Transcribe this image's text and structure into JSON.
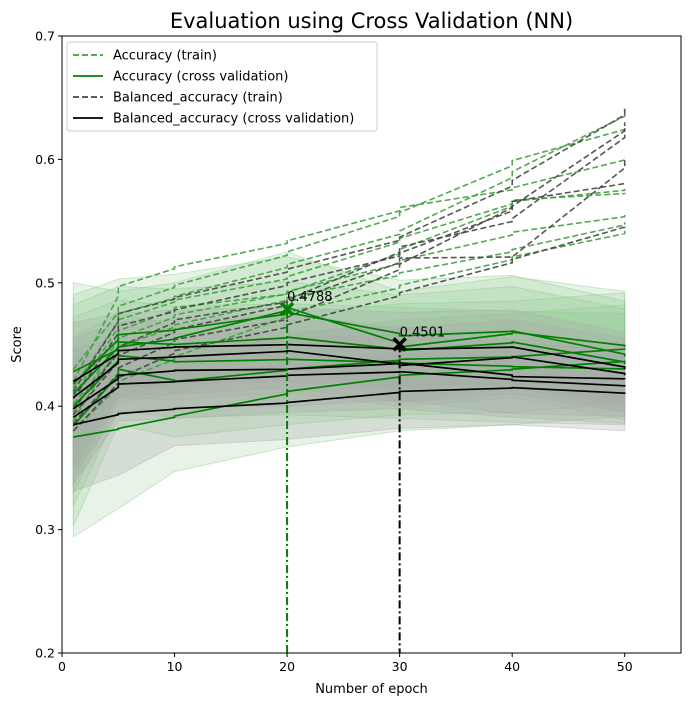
{
  "chart_data": {
    "type": "line",
    "title": "Evaluation using Cross Validation (NN)",
    "xlabel": "Number of epoch",
    "ylabel": "Score",
    "xlim": [
      0,
      55
    ],
    "ylim": [
      0.2,
      0.7
    ],
    "xticks": [
      0,
      10,
      20,
      30,
      40,
      50
    ],
    "yticks": [
      0.2,
      0.3,
      0.4,
      0.5,
      0.6,
      0.7
    ],
    "x": [
      1,
      5,
      10,
      20,
      30,
      40,
      50
    ],
    "grid": false,
    "legend_position": "top-left",
    "colors": {
      "accuracy_train": "#3fa03f",
      "accuracy_cv": "#008000",
      "balanced_train": "#444444",
      "balanced_cv": "#000000",
      "band_green": "#8cc88c",
      "band_gray": "#aaaaaa"
    },
    "series": [
      {
        "name": "Accuracy (train)",
        "style": "dashed",
        "color": "#3fa03f",
        "runs": [
          [
            0.42,
            0.497,
            0.513,
            0.534,
            0.561,
            0.577,
            0.602
          ],
          [
            0.43,
            0.481,
            0.498,
            0.525,
            0.557,
            0.599,
            0.627
          ],
          [
            0.415,
            0.475,
            0.489,
            0.515,
            0.542,
            0.59,
            0.64
          ],
          [
            0.408,
            0.47,
            0.486,
            0.505,
            0.536,
            0.567,
            0.573
          ],
          [
            0.395,
            0.461,
            0.48,
            0.492,
            0.527,
            0.566,
            0.576
          ],
          [
            0.388,
            0.455,
            0.474,
            0.493,
            0.518,
            0.541,
            0.555
          ],
          [
            0.402,
            0.448,
            0.466,
            0.488,
            0.508,
            0.527,
            0.549
          ],
          [
            0.38,
            0.42,
            0.44,
            0.476,
            0.498,
            0.521,
            0.542
          ]
        ]
      },
      {
        "name": "Accuracy (cross validation)",
        "style": "solid",
        "color": "#008000",
        "runs": [
          [
            0.428,
            0.448,
            0.455,
            0.48,
            0.448,
            0.46,
            0.448
          ],
          [
            0.418,
            0.458,
            0.462,
            0.476,
            0.457,
            0.461,
            0.44
          ],
          [
            0.41,
            0.452,
            0.45,
            0.456,
            0.445,
            0.452,
            0.434
          ],
          [
            0.4,
            0.441,
            0.436,
            0.438,
            0.435,
            0.432,
            0.43
          ],
          [
            0.384,
            0.43,
            0.42,
            0.43,
            0.438,
            0.44,
            0.447
          ],
          [
            0.375,
            0.382,
            0.392,
            0.412,
            0.425,
            0.43,
            0.437
          ]
        ]
      },
      {
        "name": "Balanced_accuracy (train)",
        "style": "dashed",
        "color": "#444444",
        "runs": [
          [
            0.412,
            0.475,
            0.488,
            0.511,
            0.537,
            0.583,
            0.642
          ],
          [
            0.406,
            0.465,
            0.478,
            0.5,
            0.524,
            0.562,
            0.63
          ],
          [
            0.398,
            0.448,
            0.47,
            0.486,
            0.529,
            0.552,
            0.625
          ],
          [
            0.393,
            0.441,
            0.462,
            0.484,
            0.52,
            0.521,
            0.601
          ],
          [
            0.386,
            0.431,
            0.454,
            0.472,
            0.515,
            0.566,
            0.582
          ],
          [
            0.38,
            0.423,
            0.445,
            0.466,
            0.492,
            0.519,
            0.548
          ]
        ]
      },
      {
        "name": "Balanced_accuracy (cross validation)",
        "style": "solid",
        "color": "#000000",
        "runs": [
          [
            0.42,
            0.445,
            0.448,
            0.45,
            0.446,
            0.448,
            0.43
          ],
          [
            0.407,
            0.438,
            0.44,
            0.445,
            0.433,
            0.44,
            0.425
          ],
          [
            0.398,
            0.425,
            0.429,
            0.43,
            0.435,
            0.424,
            0.422
          ],
          [
            0.391,
            0.418,
            0.42,
            0.425,
            0.428,
            0.421,
            0.416
          ],
          [
            0.385,
            0.394,
            0.398,
            0.403,
            0.412,
            0.415,
            0.41
          ]
        ]
      }
    ],
    "markers": [
      {
        "series": "Accuracy (cross validation)",
        "x": 20,
        "y": 0.4788,
        "label": "0.4788",
        "color": "#008000"
      },
      {
        "series": "Balanced_accuracy (cross validation)",
        "x": 30,
        "y": 0.4501,
        "label": "0.4501",
        "color": "#000000"
      }
    ]
  }
}
